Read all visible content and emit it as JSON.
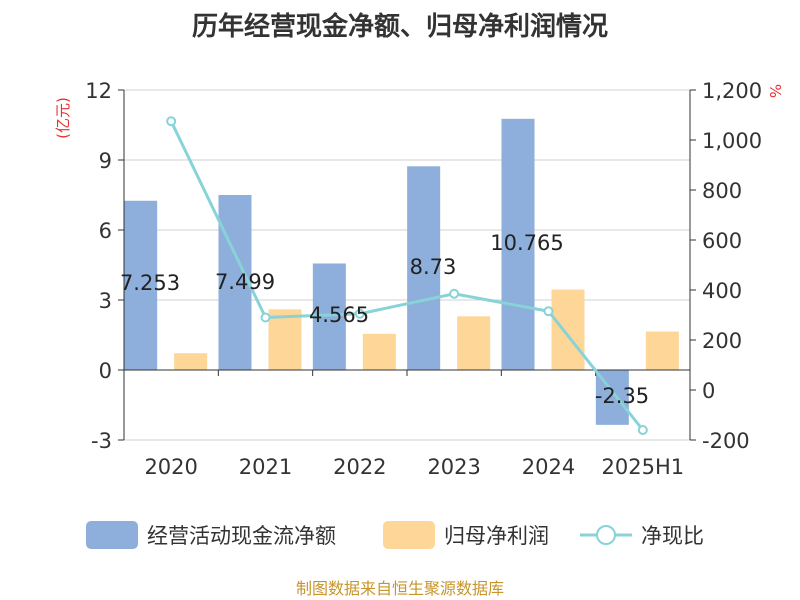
{
  "chart_data": {
    "type": "bar",
    "title": "历年经营现金净额、归母净利润情况",
    "categories": [
      "2020",
      "2021",
      "2022",
      "2023",
      "2024",
      "2025H1"
    ],
    "y_left": {
      "unit": "(亿元)",
      "ylim": [
        -3,
        12
      ],
      "ticks": [
        "12",
        "9",
        "6",
        "3",
        "0",
        "-3"
      ],
      "tick_values": [
        12,
        9,
        6,
        3,
        0,
        -3
      ]
    },
    "y_right": {
      "unit": "%",
      "ylim": [
        -200,
        1200
      ],
      "ticks": [
        "1,200",
        "1,000",
        "800",
        "600",
        "400",
        "200",
        "0",
        "-200"
      ],
      "tick_values": [
        1200,
        1000,
        800,
        600,
        400,
        200,
        0,
        -200
      ]
    },
    "series": [
      {
        "name": "经营活动现金流净额",
        "type": "bar",
        "axis": "left",
        "color": "#8eaedb",
        "values": [
          7.253,
          7.499,
          4.565,
          8.73,
          10.765,
          -2.35
        ],
        "labels": [
          "7.253",
          "7.499",
          "4.565",
          "8.73",
          "10.765",
          "-2.35"
        ]
      },
      {
        "name": "归母净利润",
        "type": "bar",
        "axis": "left",
        "color": "#fdd698",
        "values": [
          0.72,
          2.6,
          1.55,
          2.3,
          3.45,
          1.65
        ]
      },
      {
        "name": "净现比",
        "type": "line",
        "axis": "right",
        "color": "#87d3d8",
        "values": [
          1075,
          290,
          305,
          385,
          315,
          -160
        ]
      }
    ],
    "grid": true,
    "legend_position": "bottom"
  },
  "footer": {
    "source": "制图数据来自恒生聚源数据库"
  }
}
